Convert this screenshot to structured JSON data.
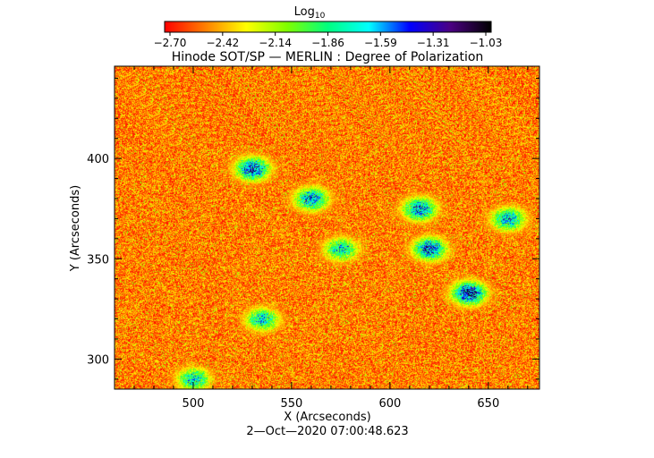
{
  "colorbar": {
    "label": "Log",
    "label_subscript": "10",
    "ticks": [
      "−2.70",
      "−2.42",
      "−2.14",
      "−1.86",
      "−1.59",
      "−1.31",
      "−1.03"
    ],
    "range": [
      -2.7,
      -1.03
    ],
    "colormap": [
      "#ff0000",
      "#ff7f00",
      "#ffff00",
      "#7fff00",
      "#00ff7f",
      "#00ffff",
      "#0000ff",
      "#4b0082",
      "#000000"
    ]
  },
  "chart_data": {
    "type": "heatmap",
    "title": "Hinode SOT/SP — MERLIN : Degree of Polarization",
    "xlabel": "X (Arcseconds)",
    "ylabel": "Y (Arcseconds)",
    "xlim": [
      460,
      676
    ],
    "ylim": [
      285,
      446
    ],
    "xticks": [
      500,
      550,
      600,
      650
    ],
    "yticks": [
      300,
      350,
      400
    ],
    "timestamp": "2—Oct—2020 07:00:48.623",
    "background_value_range": [
      -2.7,
      -2.3
    ],
    "high_polarization_features": [
      {
        "x": 530,
        "y": 395,
        "peak_value": -1.25
      },
      {
        "x": 560,
        "y": 380,
        "peak_value": -1.4
      },
      {
        "x": 615,
        "y": 375,
        "peak_value": -1.4
      },
      {
        "x": 620,
        "y": 355,
        "peak_value": -1.35
      },
      {
        "x": 640,
        "y": 333,
        "peak_value": -1.15
      },
      {
        "x": 660,
        "y": 370,
        "peak_value": -1.5
      },
      {
        "x": 575,
        "y": 355,
        "peak_value": -1.6
      },
      {
        "x": 535,
        "y": 320,
        "peak_value": -1.6
      },
      {
        "x": 500,
        "y": 290,
        "peak_value": -1.6
      }
    ]
  }
}
